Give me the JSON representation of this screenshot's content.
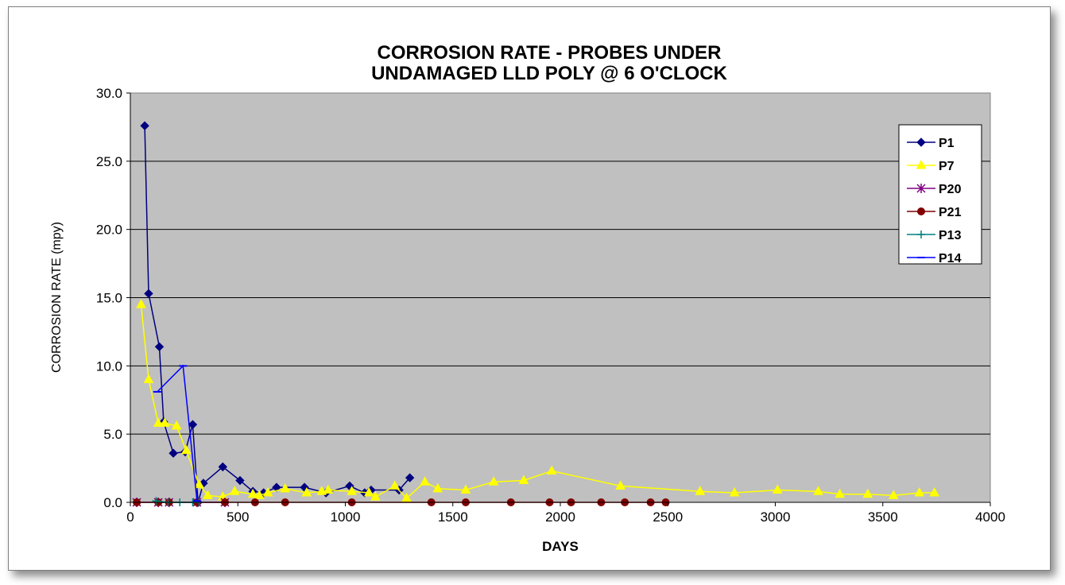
{
  "chart_data": {
    "type": "line",
    "title_lines": [
      "CORROSION RATE - PROBES UNDER",
      "UNDAMAGED LLD POLY @ 6 O'CLOCK"
    ],
    "xlabel": "DAYS",
    "ylabel": "CORROSION RATE (mpy)",
    "xlim": [
      0,
      4000
    ],
    "ylim": [
      0,
      30
    ],
    "x_ticks": [
      0,
      500,
      1000,
      1500,
      2000,
      2500,
      3000,
      3500,
      4000
    ],
    "y_ticks": [
      0,
      5,
      10,
      15,
      20,
      25,
      30
    ],
    "x_tick_labels": [
      "0",
      "500",
      "1000",
      "1500",
      "2000",
      "2500",
      "3000",
      "3500",
      "4000"
    ],
    "y_tick_labels": [
      "0.0",
      "5.0",
      "10.0",
      "15.0",
      "20.0",
      "25.0",
      "30.0"
    ],
    "grid": "horizontal",
    "plot_background": "#c0c0c0",
    "legend_position": "top-right",
    "series": [
      {
        "name": "P1",
        "color": "#000080",
        "marker": "diamond",
        "x": [
          67,
          85,
          135,
          155,
          200,
          255,
          290,
          315,
          340,
          430,
          510,
          570,
          620,
          680,
          810,
          910,
          1020,
          1090,
          1120,
          1250,
          1300
        ],
        "y": [
          27.6,
          15.3,
          11.4,
          5.9,
          3.6,
          3.7,
          5.7,
          0.0,
          1.4,
          2.6,
          1.6,
          0.8,
          0.7,
          1.1,
          1.1,
          0.7,
          1.2,
          0.7,
          0.9,
          0.9,
          1.8
        ]
      },
      {
        "name": "P7",
        "color": "#ffff00",
        "marker": "triangle",
        "x": [
          50,
          85,
          130,
          160,
          215,
          260,
          320,
          360,
          430,
          485,
          570,
          600,
          640,
          720,
          820,
          890,
          920,
          1030,
          1110,
          1140,
          1230,
          1285,
          1370,
          1430,
          1560,
          1690,
          1830,
          1960,
          2280,
          2650,
          2810,
          3010,
          3200,
          3300,
          3430,
          3550,
          3670,
          3740
        ],
        "y": [
          14.5,
          9.0,
          5.8,
          5.8,
          5.6,
          3.8,
          1.3,
          0.5,
          0.4,
          0.8,
          0.6,
          0.5,
          0.7,
          1.0,
          0.7,
          0.8,
          0.9,
          0.8,
          0.7,
          0.4,
          1.2,
          0.3,
          1.5,
          1.0,
          0.9,
          1.5,
          1.6,
          2.3,
          1.2,
          0.8,
          0.7,
          0.9,
          0.8,
          0.6,
          0.6,
          0.5,
          0.7,
          0.7
        ]
      },
      {
        "name": "P20",
        "color": "#800080",
        "marker": "star",
        "x": [
          30,
          130,
          180,
          310,
          440
        ],
        "y": [
          0.0,
          0.0,
          0.0,
          0.0,
          0.0
        ]
      },
      {
        "name": "P21",
        "color": "#800000",
        "marker": "circle",
        "x": [
          30,
          130,
          180,
          310,
          440,
          580,
          720,
          1030,
          1400,
          1560,
          1770,
          1950,
          2050,
          2190,
          2300,
          2420,
          2490
        ],
        "y": [
          0.0,
          0.0,
          0.0,
          0.0,
          0.0,
          0.0,
          0.0,
          0.0,
          0.0,
          0.0,
          0.0,
          0.0,
          0.0,
          0.0,
          0.0,
          0.0,
          0.0
        ]
      },
      {
        "name": "P13",
        "color": "#008080",
        "marker": "plus",
        "x": [
          120,
          175,
          230,
          290,
          320
        ],
        "y": [
          0.1,
          0.0,
          0.0,
          0.0,
          0.0
        ]
      },
      {
        "name": "P14",
        "color": "#0000ff",
        "marker": "dash",
        "x": [
          125,
          245,
          310
        ],
        "y": [
          8.1,
          10.0,
          0.1
        ]
      }
    ]
  }
}
